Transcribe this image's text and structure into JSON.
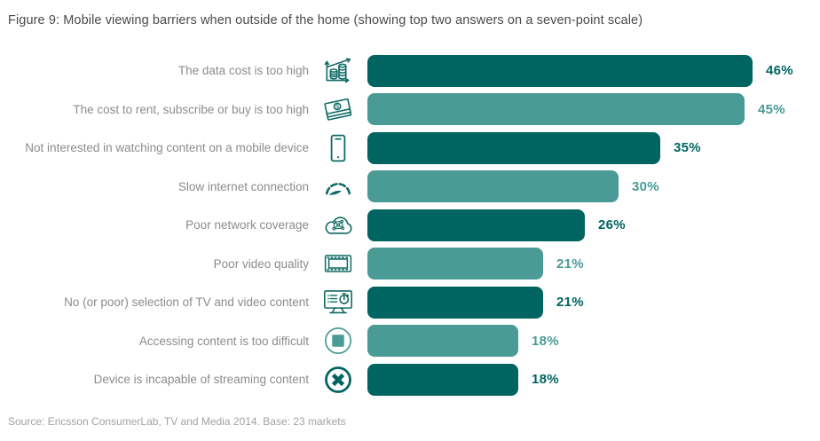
{
  "title": "Figure 9: Mobile viewing barriers when outside of the home (showing top two answers on a seven-point scale)",
  "source": "Source: Ericsson ConsumerLab, TV and Media 2014. Base: 23 markets",
  "colors": {
    "dark": "#006460",
    "light": "#4a9a96",
    "icon": "#0e6a63",
    "title_text": "#4a4a4a",
    "label_text": "#8c8c8c",
    "source_text": "#a2a2a2"
  },
  "chart_data": {
    "type": "bar",
    "orientation": "horizontal",
    "title": "Figure 9: Mobile viewing barriers when outside of the home (showing top two answers on a seven-point scale)",
    "xlabel": "",
    "ylabel": "",
    "value_unit": "percent",
    "xlim": [
      0,
      50
    ],
    "grid": false,
    "legend": false,
    "categories": [
      "The data cost is too high",
      "The cost to rent, subscribe or buy is too high",
      "Not interested in watching content on a mobile device",
      "Slow internet connection",
      "Poor network coverage",
      "Poor video quality",
      "No (or poor) selection of TV and video content",
      "Accessing content is too difficult",
      "Device is incapable of streaming content"
    ],
    "values": [
      46,
      45,
      35,
      30,
      26,
      21,
      21,
      18,
      18
    ],
    "rows": [
      {
        "label": "The data cost is too high",
        "value": 46,
        "display": "46%",
        "variant": "dark",
        "icon": "coins-growth-icon"
      },
      {
        "label": "The cost to rent, subscribe or buy is too high",
        "value": 45,
        "display": "45%",
        "variant": "light",
        "icon": "banknotes-icon"
      },
      {
        "label": "Not interested in watching content on a mobile device",
        "value": 35,
        "display": "35%",
        "variant": "dark",
        "icon": "smartphone-icon"
      },
      {
        "label": "Slow internet connection",
        "value": 30,
        "display": "30%",
        "variant": "light",
        "icon": "speedometer-icon"
      },
      {
        "label": "Poor network coverage",
        "value": 26,
        "display": "26%",
        "variant": "dark",
        "icon": "network-cloud-icon"
      },
      {
        "label": "Poor video quality",
        "value": 21,
        "display": "21%",
        "variant": "light",
        "icon": "film-strip-icon"
      },
      {
        "label": "No (or poor) selection of TV and video content",
        "value": 21,
        "display": "21%",
        "variant": "dark",
        "icon": "tv-content-clock-icon"
      },
      {
        "label": "Accessing content is too difficult",
        "value": 18,
        "display": "18%",
        "variant": "light",
        "icon": "stop-button-icon"
      },
      {
        "label": "Device is incapable of streaming content",
        "value": 18,
        "display": "18%",
        "variant": "dark",
        "icon": "cancel-icon"
      }
    ]
  }
}
